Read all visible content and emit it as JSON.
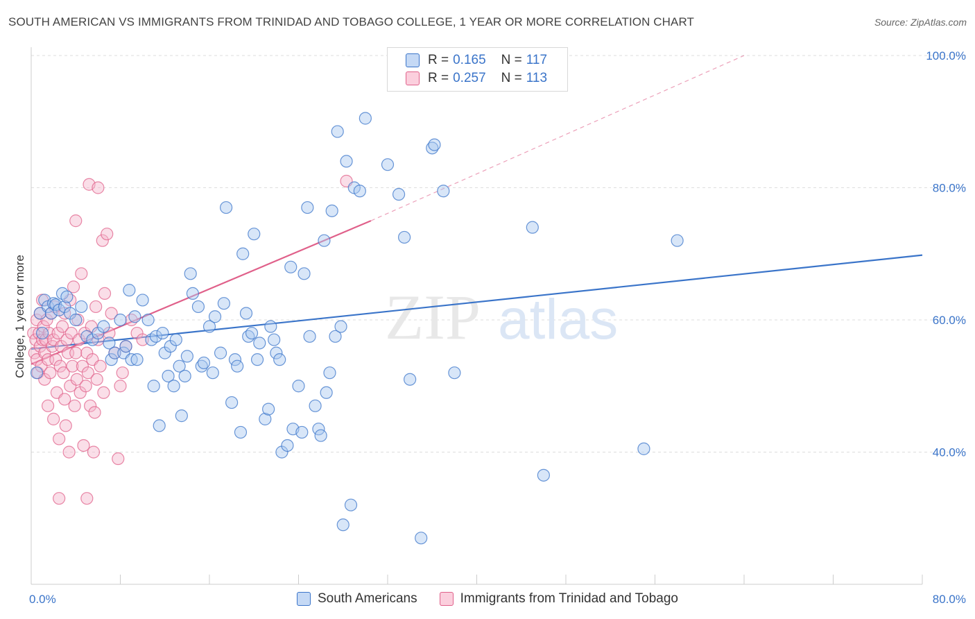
{
  "title": "SOUTH AMERICAN VS IMMIGRANTS FROM TRINIDAD AND TOBAGO COLLEGE, 1 YEAR OR MORE CORRELATION CHART",
  "source": "Source: ZipAtlas.com",
  "watermark": {
    "zip": "ZIP",
    "atlas": "atlas"
  },
  "colors": {
    "blue": "#3a74c9",
    "blue_fill": "#a9c8f0",
    "pink": "#e0608a",
    "pink_fill": "#f5b5cb",
    "grid": "#dddddd"
  },
  "legend": {
    "r1_label": "R =",
    "r1_value": "0.165",
    "n1_label": "N =",
    "n1_value": "117",
    "r2_label": "R =",
    "r2_value": "0.257",
    "n2_label": "N =",
    "n2_value": "113"
  },
  "bottom_legend": {
    "series1": "South Americans",
    "series2": "Immigrants from Trinidad and Tobago"
  },
  "chart_data": {
    "type": "scatter",
    "title": "SOUTH AMERICAN VS IMMIGRANTS FROM TRINIDAD AND TOBAGO COLLEGE, 1 YEAR OR MORE CORRELATION CHART",
    "xlabel": "",
    "ylabel": "College, 1 year or more",
    "xlim": [
      0,
      80
    ],
    "ylim": [
      20,
      100
    ],
    "x_tick_labels": [
      "0.0%",
      "80.0%"
    ],
    "y_tick_labels": [
      "40.0%",
      "60.0%",
      "80.0%",
      "100.0%"
    ],
    "y_tick_values": [
      40,
      60,
      80,
      100
    ],
    "series": [
      {
        "name": "South Americans",
        "color": "#3a74c9",
        "R": 0.165,
        "N": 117,
        "trend": {
          "x": [
            0,
            80
          ],
          "y": [
            55.6,
            69.8
          ],
          "dashed_extension": false
        },
        "points": [
          [
            0.5,
            52
          ],
          [
            0.8,
            61
          ],
          [
            1.0,
            58
          ],
          [
            1.2,
            63
          ],
          [
            1.5,
            62
          ],
          [
            1.8,
            61
          ],
          [
            2.0,
            62.5
          ],
          [
            2.2,
            62.3
          ],
          [
            2.5,
            61.5
          ],
          [
            2.8,
            64
          ],
          [
            3.0,
            62
          ],
          [
            3.2,
            63.5
          ],
          [
            3.5,
            61
          ],
          [
            4.0,
            60
          ],
          [
            4.5,
            62
          ],
          [
            5.0,
            57.5
          ],
          [
            5.5,
            57
          ],
          [
            6.0,
            58
          ],
          [
            6.5,
            59
          ],
          [
            7.0,
            56.5
          ],
          [
            7.2,
            54
          ],
          [
            7.5,
            55
          ],
          [
            8.0,
            60
          ],
          [
            8.3,
            55
          ],
          [
            8.5,
            56
          ],
          [
            8.8,
            64.5
          ],
          [
            9.0,
            54
          ],
          [
            9.3,
            60.5
          ],
          [
            9.5,
            54
          ],
          [
            10.0,
            63
          ],
          [
            10.5,
            60
          ],
          [
            10.8,
            57
          ],
          [
            11.0,
            50
          ],
          [
            11.2,
            57.5
          ],
          [
            11.5,
            44
          ],
          [
            11.8,
            58
          ],
          [
            12.0,
            55
          ],
          [
            12.3,
            51.5
          ],
          [
            12.5,
            56
          ],
          [
            12.8,
            50
          ],
          [
            13.0,
            57
          ],
          [
            13.3,
            53
          ],
          [
            13.5,
            45.5
          ],
          [
            13.8,
            51.5
          ],
          [
            14.0,
            54.5
          ],
          [
            14.3,
            67
          ],
          [
            14.5,
            64
          ],
          [
            15.0,
            62
          ],
          [
            15.3,
            53
          ],
          [
            15.5,
            53.5
          ],
          [
            16.0,
            59
          ],
          [
            16.3,
            52
          ],
          [
            16.5,
            60.5
          ],
          [
            17.0,
            55
          ],
          [
            17.3,
            62.5
          ],
          [
            17.5,
            77
          ],
          [
            18.0,
            47.5
          ],
          [
            18.3,
            54
          ],
          [
            18.5,
            53
          ],
          [
            18.8,
            43
          ],
          [
            19.0,
            70
          ],
          [
            19.3,
            61
          ],
          [
            19.5,
            57.5
          ],
          [
            19.8,
            58
          ],
          [
            20.0,
            73
          ],
          [
            20.3,
            54
          ],
          [
            20.5,
            56.5
          ],
          [
            21.0,
            45
          ],
          [
            21.3,
            46.5
          ],
          [
            21.5,
            59
          ],
          [
            21.8,
            57
          ],
          [
            22.0,
            55
          ],
          [
            22.3,
            54
          ],
          [
            22.5,
            40
          ],
          [
            23.0,
            41
          ],
          [
            23.3,
            68
          ],
          [
            23.5,
            43.5
          ],
          [
            24.0,
            50
          ],
          [
            24.3,
            43
          ],
          [
            24.5,
            67
          ],
          [
            24.8,
            77
          ],
          [
            25.0,
            57.5
          ],
          [
            25.5,
            47
          ],
          [
            25.8,
            43.5
          ],
          [
            26.0,
            42.5
          ],
          [
            26.3,
            72
          ],
          [
            26.5,
            49
          ],
          [
            26.8,
            52
          ],
          [
            27.0,
            76.5
          ],
          [
            27.3,
            57.5
          ],
          [
            27.5,
            88.5
          ],
          [
            27.8,
            59
          ],
          [
            28.0,
            29
          ],
          [
            28.3,
            84
          ],
          [
            28.7,
            32
          ],
          [
            29.0,
            80
          ],
          [
            29.5,
            79.5
          ],
          [
            30.0,
            90.5
          ],
          [
            32.0,
            83.5
          ],
          [
            33.0,
            79
          ],
          [
            33.5,
            72.5
          ],
          [
            34.0,
            51
          ],
          [
            35.0,
            27
          ],
          [
            36.0,
            86
          ],
          [
            36.2,
            86.5
          ],
          [
            37.0,
            79.5
          ],
          [
            38.0,
            52
          ],
          [
            45.0,
            74
          ],
          [
            46.0,
            36.5
          ],
          [
            55.0,
            40.5
          ],
          [
            58.0,
            72
          ]
        ]
      },
      {
        "name": "Immigrants from Trinidad and Tobago",
        "color": "#e0608a",
        "R": 0.257,
        "N": 113,
        "trend": {
          "x": [
            0,
            30.5
          ],
          "y": [
            53.3,
            75.0
          ],
          "dashed_to": [
            64,
            100
          ]
        },
        "points": [
          [
            0.2,
            58
          ],
          [
            0.3,
            55
          ],
          [
            0.4,
            57
          ],
          [
            0.5,
            54
          ],
          [
            0.5,
            60
          ],
          [
            0.6,
            52
          ],
          [
            0.7,
            58
          ],
          [
            0.8,
            56
          ],
          [
            0.8,
            61
          ],
          [
            0.9,
            53
          ],
          [
            1.0,
            57
          ],
          [
            1.0,
            63
          ],
          [
            1.1,
            59
          ],
          [
            1.2,
            55
          ],
          [
            1.2,
            51
          ],
          [
            1.3,
            57
          ],
          [
            1.4,
            60
          ],
          [
            1.5,
            54
          ],
          [
            1.5,
            47
          ],
          [
            1.6,
            58
          ],
          [
            1.7,
            52
          ],
          [
            1.8,
            61
          ],
          [
            1.9,
            56
          ],
          [
            2.0,
            45
          ],
          [
            2.0,
            57
          ],
          [
            2.1,
            62
          ],
          [
            2.2,
            54
          ],
          [
            2.3,
            49
          ],
          [
            2.4,
            58
          ],
          [
            2.5,
            33
          ],
          [
            2.5,
            42
          ],
          [
            2.6,
            53
          ],
          [
            2.7,
            56
          ],
          [
            2.8,
            59
          ],
          [
            2.9,
            52
          ],
          [
            3.0,
            48
          ],
          [
            3.0,
            61
          ],
          [
            3.1,
            44
          ],
          [
            3.2,
            57
          ],
          [
            3.3,
            55
          ],
          [
            3.4,
            40
          ],
          [
            3.5,
            50
          ],
          [
            3.5,
            63
          ],
          [
            3.6,
            58
          ],
          [
            3.7,
            53
          ],
          [
            3.8,
            65
          ],
          [
            3.9,
            47
          ],
          [
            4.0,
            75
          ],
          [
            4.0,
            55
          ],
          [
            4.1,
            51
          ],
          [
            4.2,
            60
          ],
          [
            4.3,
            57
          ],
          [
            4.4,
            49
          ],
          [
            4.5,
            67
          ],
          [
            4.6,
            53
          ],
          [
            4.7,
            41
          ],
          [
            4.8,
            58
          ],
          [
            4.9,
            50
          ],
          [
            5.0,
            33
          ],
          [
            5.0,
            55
          ],
          [
            5.1,
            52
          ],
          [
            5.2,
            80.5
          ],
          [
            5.3,
            47
          ],
          [
            5.4,
            59
          ],
          [
            5.5,
            54
          ],
          [
            5.6,
            40
          ],
          [
            5.7,
            46
          ],
          [
            5.8,
            62
          ],
          [
            5.9,
            51
          ],
          [
            6.0,
            57
          ],
          [
            6.0,
            80
          ],
          [
            6.2,
            53
          ],
          [
            6.4,
            72
          ],
          [
            6.5,
            49
          ],
          [
            6.6,
            64
          ],
          [
            6.8,
            73
          ],
          [
            7.0,
            58
          ],
          [
            7.2,
            61
          ],
          [
            7.5,
            55
          ],
          [
            7.8,
            39
          ],
          [
            8.0,
            50
          ],
          [
            8.2,
            52
          ],
          [
            8.5,
            56
          ],
          [
            9.0,
            60
          ],
          [
            9.5,
            58
          ],
          [
            10.0,
            57
          ],
          [
            28.3,
            81
          ]
        ]
      }
    ]
  }
}
